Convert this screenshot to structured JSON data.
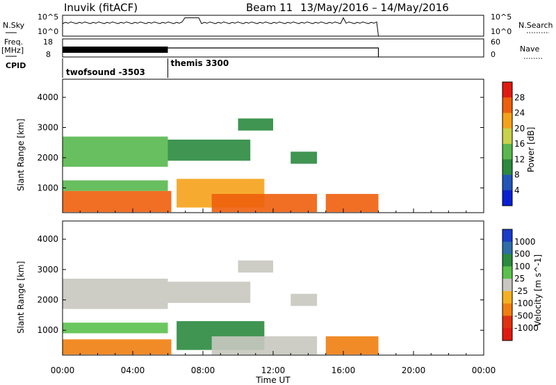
{
  "header": {
    "station": "Inuvik (fitACF)",
    "beam": "Beam 11",
    "dates": "13/May/2016 – 14/May/2016"
  },
  "top_panels": {
    "nsky_label": "N.Sky",
    "nsky_ticks": [
      "10^5",
      "10^0"
    ],
    "nsearch_label": "N.Search",
    "nsearch_ticks": [
      "10^5",
      "10^0"
    ],
    "freq_label": "Freq.",
    "freq_unit": "[MHz]",
    "freq_ticks": [
      "18",
      "8"
    ],
    "nave_label": "Nave",
    "nave_ticks": [
      "60",
      "0"
    ],
    "cpid_label": "CPID",
    "cpid_modes": [
      {
        "name": "twofsound -3503",
        "start_hour": 0,
        "end_hour": 6
      },
      {
        "name": "themis 3300",
        "start_hour": 6,
        "end_hour": 18
      }
    ]
  },
  "time_axis": {
    "label": "Time UT",
    "ticks": [
      "00:00",
      "04:00",
      "08:00",
      "12:00",
      "16:00",
      "20:00",
      "00:00"
    ],
    "range_hours": [
      0,
      24
    ],
    "data_end_hour": 18
  },
  "chart_data": [
    {
      "type": "heatmap",
      "title": "Power",
      "ylabel": "Slant Range [km]",
      "ylim": [
        180,
        4600
      ],
      "yticks": [
        "1000",
        "2000",
        "3000",
        "4000"
      ],
      "colorbar_label": "Power [dB]",
      "colorbar_ticks": [
        "4",
        "8",
        "12",
        "16",
        "20",
        "24",
        "28"
      ],
      "colorbar_range": [
        0,
        32
      ],
      "colors": [
        "#0a1fd2",
        "#2155b8",
        "#2a8a3e",
        "#58b84e",
        "#c8d24a",
        "#f5a21a",
        "#ee5f0c",
        "#e01a10"
      ],
      "regions": [
        {
          "t": [
            0.0,
            6.2
          ],
          "r": [
            200,
            900
          ],
          "value": 26
        },
        {
          "t": [
            0.0,
            6.0
          ],
          "r": [
            900,
            1250
          ],
          "value": 15
        },
        {
          "t": [
            0.0,
            6.0
          ],
          "r": [
            1700,
            2700
          ],
          "value": 14
        },
        {
          "t": [
            6.0,
            10.7
          ],
          "r": [
            1900,
            2600
          ],
          "value": 10
        },
        {
          "t": [
            6.5,
            11.5
          ],
          "r": [
            350,
            1300
          ],
          "value": 20
        },
        {
          "t": [
            8.5,
            14.5
          ],
          "r": [
            200,
            800
          ],
          "value": 27
        },
        {
          "t": [
            10.0,
            12.0
          ],
          "r": [
            2900,
            3300
          ],
          "value": 8
        },
        {
          "t": [
            13.0,
            14.5
          ],
          "r": [
            1800,
            2200
          ],
          "value": 9
        },
        {
          "t": [
            15.0,
            18.0
          ],
          "r": [
            200,
            800
          ],
          "value": 27
        }
      ]
    },
    {
      "type": "heatmap",
      "title": "Velocity",
      "ylabel": "Slant Range [km]",
      "ylim": [
        180,
        4600
      ],
      "yticks": [
        "1000",
        "2000",
        "3000",
        "4000"
      ],
      "colorbar_label": "Velocity [m s^-1]",
      "colorbar_ticks": [
        "1000",
        "500",
        "100",
        "25",
        "-25",
        "-100",
        "-500",
        "-1000"
      ],
      "colors": [
        "#1a3ac8",
        "#2d6ea8",
        "#2a8a3e",
        "#5ac04c",
        "#c8c8c0",
        "#f5b020",
        "#f07e10",
        "#e03010",
        "#e01a10"
      ],
      "regions": [
        {
          "t": [
            0.0,
            6.2
          ],
          "r": [
            200,
            700
          ],
          "value": -120
        },
        {
          "t": [
            0.0,
            6.0
          ],
          "r": [
            900,
            1250
          ],
          "value": 60
        },
        {
          "t": [
            0.0,
            6.0
          ],
          "r": [
            1700,
            2700
          ],
          "value": 0
        },
        {
          "t": [
            6.0,
            10.7
          ],
          "r": [
            1900,
            2600
          ],
          "value": 0
        },
        {
          "t": [
            6.5,
            11.5
          ],
          "r": [
            350,
            1300
          ],
          "value": 120
        },
        {
          "t": [
            8.5,
            14.5
          ],
          "r": [
            200,
            800
          ],
          "value": 0
        },
        {
          "t": [
            10.0,
            12.0
          ],
          "r": [
            2900,
            3300
          ],
          "value": 0
        },
        {
          "t": [
            13.0,
            14.5
          ],
          "r": [
            1800,
            2200
          ],
          "value": 0
        },
        {
          "t": [
            15.0,
            18.0
          ],
          "r": [
            200,
            800
          ],
          "value": -200
        }
      ]
    }
  ]
}
